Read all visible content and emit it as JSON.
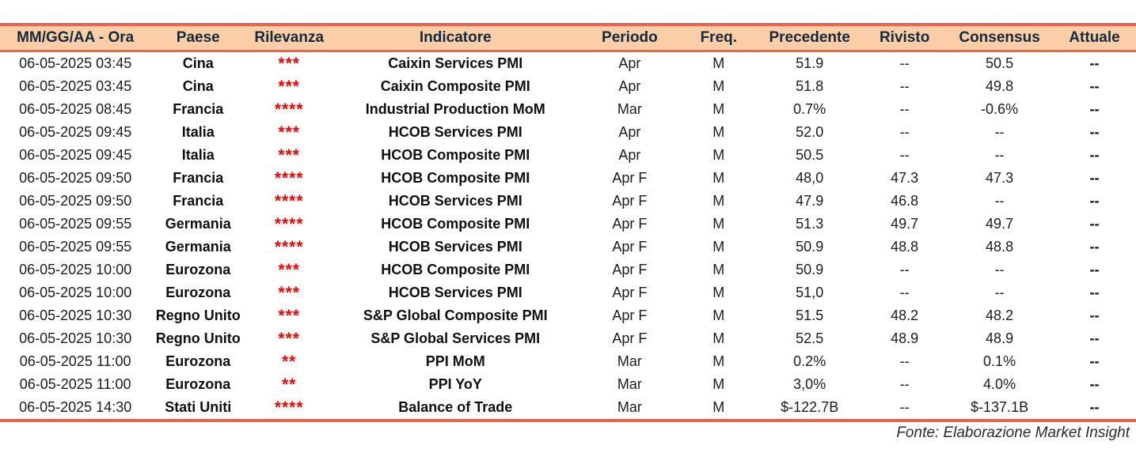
{
  "colors": {
    "accent_border": "#E8654C",
    "header_bg": "#FBCEA8",
    "header_text": "#15293C",
    "body_text": "#1C1C1C",
    "star_red": "#F50000",
    "footer_text": "#2B2B2B"
  },
  "table": {
    "columns": [
      "MM/GG/AA - Ora",
      "Paese",
      "Rilevanza",
      "Indicatore",
      "Periodo",
      "Freq.",
      "Precedente",
      "Rivisto",
      "Consensus",
      "Attuale"
    ],
    "rows": [
      {
        "datetime": "06-05-2025 03:45",
        "country": "Cina",
        "relevance": "***",
        "indicator": "Caixin Services PMI",
        "period": "Apr",
        "freq": "M",
        "previous": "51.9",
        "revised": "--",
        "consensus": "50.5",
        "actual": "--"
      },
      {
        "datetime": "06-05-2025 03:45",
        "country": "Cina",
        "relevance": "***",
        "indicator": "Caixin Composite PMI",
        "period": "Apr",
        "freq": "M",
        "previous": "51.8",
        "revised": "--",
        "consensus": "49.8",
        "actual": "--"
      },
      {
        "datetime": "06-05-2025 08:45",
        "country": "Francia",
        "relevance": "****",
        "indicator": "Industrial Production MoM",
        "period": "Mar",
        "freq": "M",
        "previous": "0.7%",
        "revised": "--",
        "consensus": "-0.6%",
        "actual": "--"
      },
      {
        "datetime": "06-05-2025 09:45",
        "country": "Italia",
        "relevance": "***",
        "indicator": "HCOB Services PMI",
        "period": "Apr",
        "freq": "M",
        "previous": "52.0",
        "revised": "--",
        "consensus": "--",
        "actual": "--"
      },
      {
        "datetime": "06-05-2025 09:45",
        "country": "Italia",
        "relevance": "***",
        "indicator": "HCOB Composite PMI",
        "period": "Apr",
        "freq": "M",
        "previous": "50.5",
        "revised": "--",
        "consensus": "--",
        "actual": "--"
      },
      {
        "datetime": "06-05-2025 09:50",
        "country": "Francia",
        "relevance": "****",
        "indicator": "HCOB Composite PMI",
        "period": "Apr F",
        "freq": "M",
        "previous": "48,0",
        "revised": "47.3",
        "consensus": "47.3",
        "actual": "--"
      },
      {
        "datetime": "06-05-2025 09:50",
        "country": "Francia",
        "relevance": "****",
        "indicator": "HCOB Services PMI",
        "period": "Apr F",
        "freq": "M",
        "previous": "47.9",
        "revised": "46.8",
        "consensus": "--",
        "actual": "--"
      },
      {
        "datetime": "06-05-2025 09:55",
        "country": "Germania",
        "relevance": "****",
        "indicator": "HCOB Composite PMI",
        "period": "Apr F",
        "freq": "M",
        "previous": "51.3",
        "revised": "49.7",
        "consensus": "49.7",
        "actual": "--"
      },
      {
        "datetime": "06-05-2025 09:55",
        "country": "Germania",
        "relevance": "****",
        "indicator": "HCOB Services PMI",
        "period": "Apr F",
        "freq": "M",
        "previous": "50.9",
        "revised": "48.8",
        "consensus": "48.8",
        "actual": "--"
      },
      {
        "datetime": "06-05-2025 10:00",
        "country": "Eurozona",
        "relevance": "***",
        "indicator": "HCOB Composite PMI",
        "period": "Apr F",
        "freq": "M",
        "previous": "50.9",
        "revised": "--",
        "consensus": "--",
        "actual": "--"
      },
      {
        "datetime": "06-05-2025 10:00",
        "country": "Eurozona",
        "relevance": "***",
        "indicator": "HCOB Services PMI",
        "period": "Apr F",
        "freq": "M",
        "previous": "51,0",
        "revised": "--",
        "consensus": "--",
        "actual": "--"
      },
      {
        "datetime": "06-05-2025 10:30",
        "country": "Regno Unito",
        "relevance": "***",
        "indicator": "S&P Global Composite PMI",
        "period": "Apr F",
        "freq": "M",
        "previous": "51.5",
        "revised": "48.2",
        "consensus": "48.2",
        "actual": "--"
      },
      {
        "datetime": "06-05-2025 10:30",
        "country": "Regno Unito",
        "relevance": "***",
        "indicator": "S&P Global Services PMI",
        "period": "Apr F",
        "freq": "M",
        "previous": "52.5",
        "revised": "48.9",
        "consensus": "48.9",
        "actual": "--"
      },
      {
        "datetime": "06-05-2025 11:00",
        "country": "Eurozona",
        "relevance": "**",
        "indicator": "PPI MoM",
        "period": "Mar",
        "freq": "M",
        "previous": "0.2%",
        "revised": "--",
        "consensus": "0.1%",
        "actual": "--"
      },
      {
        "datetime": "06-05-2025 11:00",
        "country": "Eurozona",
        "relevance": "**",
        "indicator": "PPI YoY",
        "period": "Mar",
        "freq": "M",
        "previous": "3,0%",
        "revised": "--",
        "consensus": "4.0%",
        "actual": "--"
      },
      {
        "datetime": "06-05-2025 14:30",
        "country": "Stati Uniti",
        "relevance": "****",
        "indicator": "Balance of Trade",
        "period": "Mar",
        "freq": "M",
        "previous": "$-122.7B",
        "revised": "--",
        "consensus": "$-137.1B",
        "actual": "--"
      }
    ]
  },
  "footer": {
    "source_note": "Fonte: Elaborazione Market Insight"
  }
}
